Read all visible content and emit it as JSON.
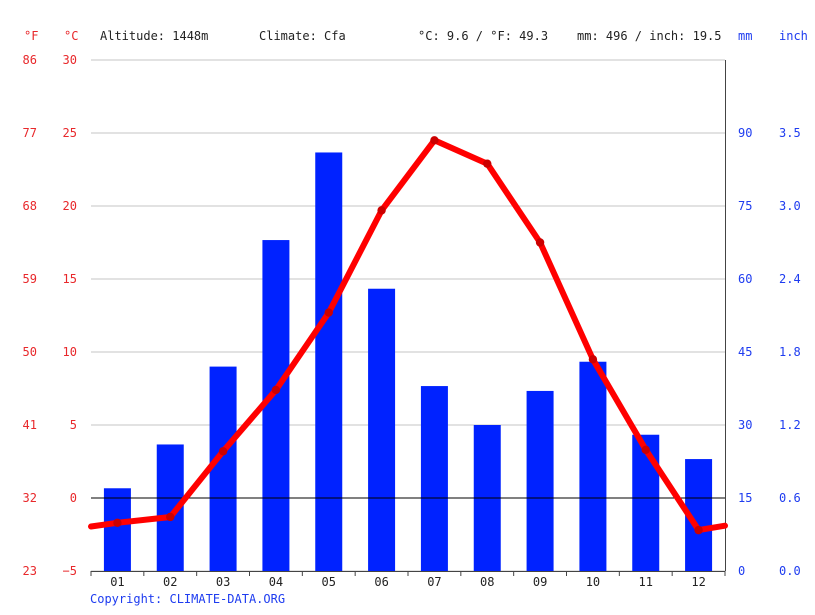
{
  "header": {
    "unit_f": "°F",
    "unit_c": "°C",
    "altitude": "Altitude: 1448m",
    "climate": "Climate: Cfa",
    "temp_avg": "°C: 9.6 / °F: 49.3",
    "precip_total": "mm: 496 / inch: 19.5",
    "unit_mm": "mm",
    "unit_inch": "inch"
  },
  "footer": {
    "copyright": "Copyright: CLIMATE-DATA.ORG"
  },
  "colors": {
    "temperature": "#ff0000",
    "precipitation": "#0022ff",
    "temp_axis_text": "#e8282b",
    "precip_axis_text": "#1e3cf0"
  },
  "chart_data": {
    "type": "bar",
    "categories": [
      "01",
      "02",
      "03",
      "04",
      "05",
      "06",
      "07",
      "08",
      "09",
      "10",
      "11",
      "12"
    ],
    "series": [
      {
        "type": "bar",
        "values": [
          17,
          26,
          42,
          68,
          86,
          58,
          38,
          30,
          37,
          43,
          28,
          23
        ]
      },
      {
        "type": "line",
        "values": [
          -1.7,
          -1.3,
          3.2,
          7.4,
          12.7,
          19.7,
          24.5,
          22.9,
          17.5,
          9.5,
          3.3,
          -2.2
        ]
      }
    ],
    "temp_axis": {
      "ylim": [
        -5,
        30
      ],
      "ticks_c": [
        "30",
        "25",
        "20",
        "15",
        "10",
        "5",
        "0",
        "−5"
      ],
      "ticks_f": [
        "86",
        "77",
        "68",
        "59",
        "50",
        "41",
        "32",
        "23"
      ]
    },
    "precip_axis": {
      "ylim": [
        0,
        105
      ],
      "ticks_mm": [
        "90",
        "75",
        "60",
        "45",
        "30",
        "15",
        "0"
      ],
      "ticks_inch": [
        "3.5",
        "3.0",
        "2.4",
        "1.8",
        "1.2",
        "0.6",
        "0.0"
      ]
    },
    "grid": true
  }
}
